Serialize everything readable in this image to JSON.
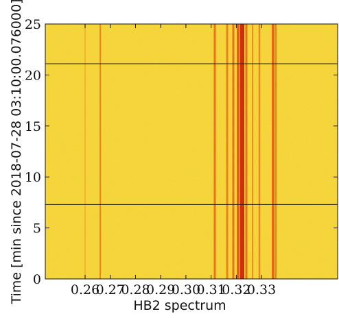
{
  "chart_data": {
    "type": "heatmap",
    "xlabel": "HB2 spectrum",
    "ylabel": "Time [min since 2018-07-28 03:10:00.076000]",
    "xlim": [
      0.2442,
      0.3602
    ],
    "xticks": [
      0.26,
      0.27,
      0.28,
      0.29,
      {
        "value": 0.3,
        "label": "0.30"
      },
      0.31,
      0.32,
      0.33
    ],
    "ylim": [
      0,
      25
    ],
    "yticks": [
      0,
      5,
      10,
      15,
      20,
      25
    ],
    "hlines": [
      21.1,
      7.3
    ],
    "hline_color": "#222222"
  }
}
